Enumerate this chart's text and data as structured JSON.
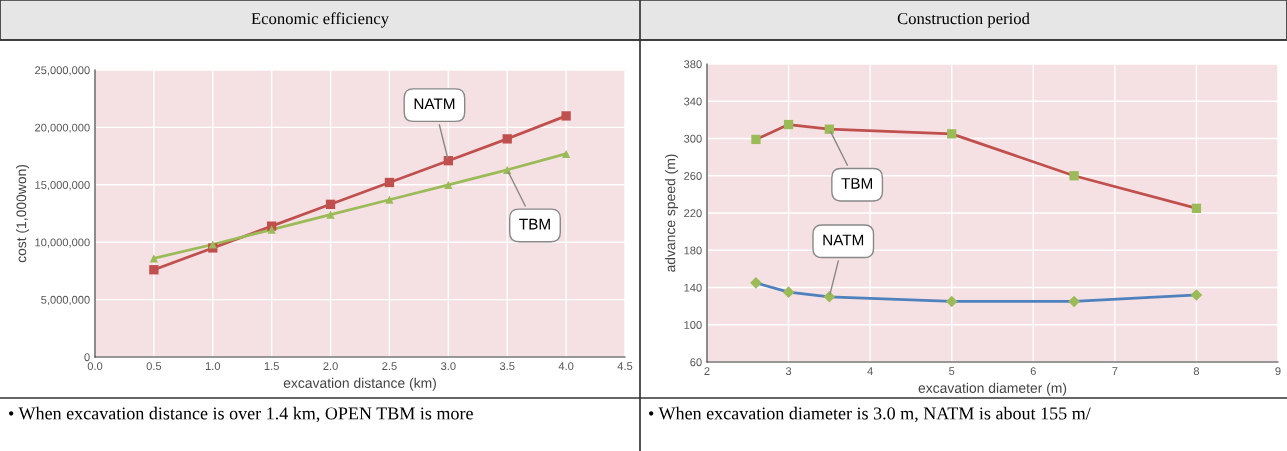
{
  "chart_data": [
    {
      "type": "line",
      "title": "Economic efficiency",
      "xlabel": "excavation distance (km)",
      "ylabel": "cost (1,000won)",
      "x": [
        0.5,
        1.0,
        1.5,
        2.0,
        2.5,
        3.0,
        3.5,
        4.0
      ],
      "series": [
        {
          "name": "NATM",
          "color": "#c0504d",
          "marker": "square",
          "values": [
            7600000,
            9500000,
            11400000,
            13300000,
            15200000,
            17100000,
            19000000,
            21000000
          ]
        },
        {
          "name": "TBM",
          "color": "#9bbb59",
          "marker": "triangle",
          "values": [
            8600000,
            9800000,
            11100000,
            12400000,
            13700000,
            15000000,
            16300000,
            17700000
          ]
        }
      ],
      "xlim": [
        0,
        4.5
      ],
      "xticks": [
        {
          "value": 0,
          "label": "0.0"
        },
        {
          "value": 0.5,
          "label": "0.5"
        },
        {
          "value": 1,
          "label": "1.0"
        },
        {
          "value": 1.5,
          "label": "1.5"
        },
        {
          "value": 2,
          "label": "2.0"
        },
        {
          "value": 2.5,
          "label": "2.5"
        },
        {
          "value": 3,
          "label": "3.0"
        },
        {
          "value": 3.5,
          "label": "3.5"
        },
        {
          "value": 4,
          "label": "4.0"
        },
        {
          "value": 4.5,
          "label": "4.5"
        }
      ],
      "ylim": [
        0,
        25000000
      ],
      "yticks": [
        {
          "value": 0,
          "label": "0"
        },
        {
          "value": 5000000,
          "label": "5,000,000"
        },
        {
          "value": 10000000,
          "label": "10,000,000"
        },
        {
          "value": 15000000,
          "label": "15,000,000"
        },
        {
          "value": 20000000,
          "label": "20,000,000"
        },
        {
          "value": 25000000,
          "label": "25,000,000"
        }
      ],
      "grid": true,
      "legend": false,
      "line_style": "solid",
      "annotations": [
        "• When excavation distance is over 1.4 km, OPEN TBM is more"
      ]
    },
    {
      "type": "line",
      "title": "Construction period",
      "xlabel": "excavation diameter (m)",
      "ylabel": "advance speed (m)",
      "x": [
        2.6,
        3,
        3.5,
        5,
        6.5,
        8
      ],
      "series": [
        {
          "name": "TBM",
          "color": "#c0504d",
          "marker": "square",
          "colors": [
            "#9bbb59",
            "#9bbb59",
            "#9bbb59",
            "#9bbb59",
            "#9bbb59",
            "#9bbb59"
          ],
          "values": [
            299,
            315,
            310,
            305,
            260,
            225
          ]
        },
        {
          "name": "NATM",
          "color": "#4f81bd",
          "marker": "diamond",
          "colors": [
            "#9bbb59",
            "#9bbb59",
            "#9bbb59",
            "#9bbb59",
            "#9bbb59",
            "#9bbb59"
          ],
          "values": [
            145,
            135,
            130,
            125,
            125,
            132
          ]
        }
      ],
      "xlim": [
        2,
        9
      ],
      "xticks": [
        2,
        3,
        4,
        5,
        6,
        7,
        8,
        9
      ],
      "ylim": [
        60,
        380
      ],
      "yticks": [
        60,
        100,
        140,
        180,
        220,
        260,
        300,
        340,
        380
      ],
      "grid": true,
      "legend": false,
      "line_style": "solid",
      "annotations": [
        "• When excavation diameter is 3.0 m, NATM is about 155 m/"
      ]
    }
  ]
}
